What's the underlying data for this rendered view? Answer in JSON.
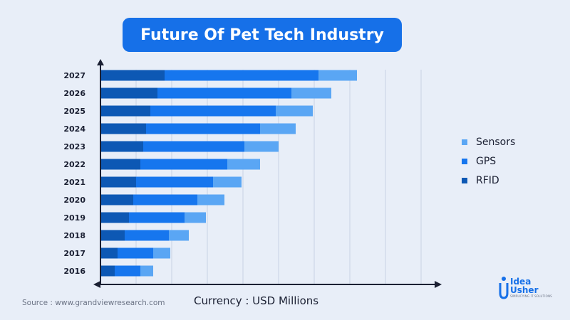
{
  "title": "Future Of Pet Tech Industry",
  "source": "Source : www.grandviewresearch.com",
  "currency_note": "Currency : USD Millions",
  "logo": {
    "line1": "Idea",
    "line2": "Usher",
    "tagline": "SIMPLIFYING IT SOLUTIONS"
  },
  "colors": {
    "RFID": "#0d58b4",
    "GPS": "#1676ee",
    "Sensors": "#5aa6f4",
    "title_bg": "#1670e8"
  },
  "legend": [
    {
      "name": "Sensors",
      "color": "#5aa6f4"
    },
    {
      "name": "GPS",
      "color": "#1676ee"
    },
    {
      "name": "RFID",
      "color": "#0d58b4"
    }
  ],
  "chart_data": {
    "type": "bar",
    "orientation": "horizontal",
    "stacked": true,
    "title": "Future Of Pet Tech Industry",
    "categories": [
      "2027",
      "2026",
      "2025",
      "2024",
      "2023",
      "2022",
      "2021",
      "2020",
      "2019",
      "2018",
      "2017",
      "2016"
    ],
    "series": [
      {
        "name": "RFID",
        "values": [
          45,
          40,
          35,
          32,
          30,
          28,
          25,
          23,
          20,
          17,
          12,
          10
        ]
      },
      {
        "name": "GPS",
        "values": [
          108,
          94,
          88,
          80,
          71,
          61,
          54,
          45,
          39,
          31,
          25,
          18
        ]
      },
      {
        "name": "Sensors",
        "values": [
          27,
          28,
          26,
          25,
          24,
          23,
          20,
          19,
          15,
          14,
          12,
          9
        ]
      }
    ],
    "xlim": [
      0,
      225
    ],
    "grid": true,
    "legend_position": "right"
  }
}
